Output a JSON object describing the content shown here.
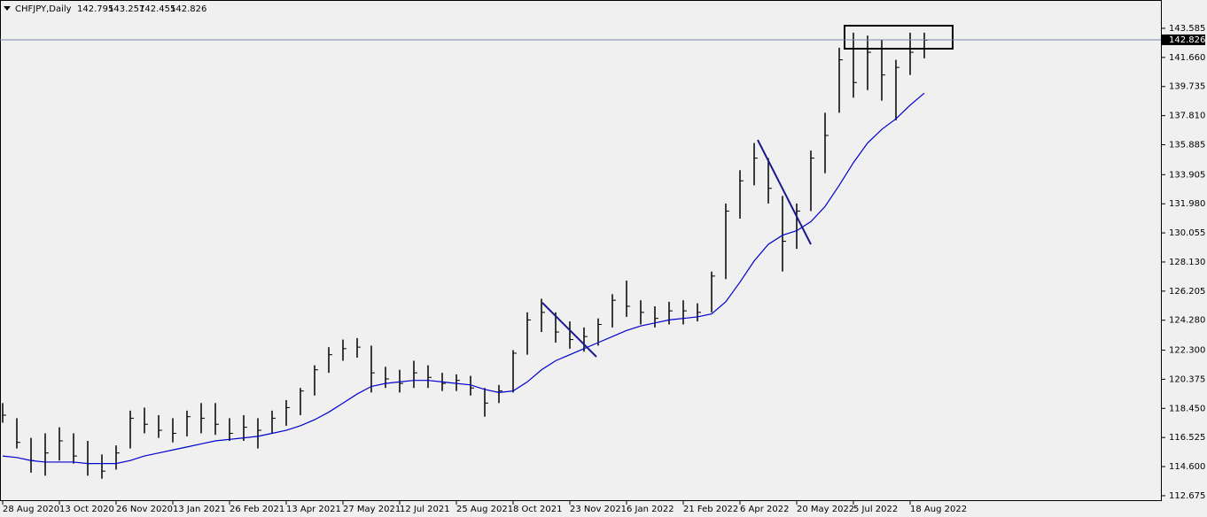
{
  "chart_data": {
    "type": "ohlc",
    "symbol": "CHFJPY,Daily",
    "quote": {
      "open": 142.795,
      "high": 143.257,
      "low": 142.455,
      "close": 142.826
    },
    "current_price": 142.826,
    "categories": [
      "28 Aug 2020",
      null,
      null,
      null,
      "13 Oct 2020",
      null,
      null,
      null,
      "26 Nov 2020",
      null,
      null,
      null,
      "13 Jan 2021",
      null,
      null,
      null,
      "26 Feb 2021",
      null,
      null,
      null,
      "13 Apr 2021",
      null,
      null,
      null,
      "27 May 2021",
      null,
      null,
      null,
      "12 Jul 2021",
      null,
      null,
      null,
      "25 Aug 2021",
      null,
      null,
      null,
      "8 Oct 2021",
      null,
      null,
      null,
      "23 Nov 2021",
      null,
      null,
      null,
      "6 Jan 2022",
      null,
      null,
      null,
      "21 Feb 2022",
      null,
      null,
      null,
      "6 Apr 2022",
      null,
      null,
      null,
      "20 May 2022",
      null,
      null,
      null,
      "5 Jul 2022",
      null,
      null,
      null,
      "18 Aug 2022",
      null
    ],
    "high": [
      118.8,
      117.8,
      116.5,
      116.8,
      117.2,
      116.8,
      116.3,
      115.4,
      116.0,
      118.3,
      118.5,
      118.0,
      117.8,
      118.3,
      118.8,
      118.8,
      117.8,
      118.0,
      117.8,
      118.3,
      119.0,
      119.8,
      121.3,
      122.5,
      123.0,
      123.1,
      122.6,
      121.2,
      121.0,
      121.6,
      121.3,
      120.8,
      120.7,
      120.6,
      119.8,
      120.0,
      122.3,
      124.8,
      125.7,
      124.8,
      124.2,
      123.8,
      124.4,
      126.0,
      126.9,
      125.6,
      125.2,
      125.5,
      125.6,
      125.4,
      127.5,
      132.0,
      134.2,
      136.0,
      135.0,
      132.5,
      132.0,
      135.5,
      138.0,
      142.3,
      143.3,
      143.1,
      142.8,
      141.5,
      143.3,
      143.3
    ],
    "low": [
      117.5,
      115.8,
      114.2,
      114.0,
      115.0,
      114.8,
      114.0,
      113.8,
      114.4,
      115.8,
      116.8,
      116.5,
      116.2,
      116.6,
      116.8,
      116.7,
      116.3,
      116.3,
      115.8,
      116.8,
      117.3,
      118.0,
      119.3,
      120.8,
      121.6,
      121.8,
      119.5,
      119.8,
      119.5,
      119.8,
      119.8,
      119.6,
      119.6,
      119.3,
      117.9,
      118.8,
      119.5,
      122.0,
      123.5,
      122.8,
      122.4,
      122.2,
      122.6,
      123.8,
      124.5,
      124.0,
      123.8,
      124.0,
      124.0,
      124.2,
      124.8,
      127.0,
      131.0,
      133.2,
      132.0,
      127.5,
      129.0,
      131.5,
      134.0,
      138.0,
      139.0,
      139.5,
      138.8,
      137.5,
      140.5,
      141.6
    ],
    "close": [
      118.0,
      116.2,
      115.0,
      115.5,
      116.3,
      115.3,
      114.8,
      114.3,
      115.5,
      117.8,
      117.4,
      117.0,
      116.8,
      117.9,
      117.8,
      117.4,
      116.8,
      117.2,
      117.0,
      117.8,
      118.5,
      119.6,
      121.0,
      122.0,
      122.4,
      122.5,
      120.8,
      120.4,
      120.1,
      120.8,
      120.5,
      120.1,
      120.3,
      119.8,
      118.8,
      119.6,
      122.1,
      124.3,
      124.8,
      123.5,
      123.0,
      123.2,
      124.0,
      125.6,
      125.2,
      124.8,
      124.4,
      124.9,
      124.9,
      124.8,
      127.2,
      131.5,
      133.5,
      135.0,
      133.0,
      129.5,
      131.5,
      135.0,
      136.5,
      141.5,
      140.0,
      142.0,
      140.5,
      141.0,
      142.0,
      142.8
    ],
    "ma": {
      "color": "#0000cc",
      "values": [
        115.3,
        115.2,
        115.0,
        114.9,
        114.9,
        114.9,
        114.8,
        114.8,
        114.8,
        115.0,
        115.3,
        115.5,
        115.7,
        115.9,
        116.1,
        116.3,
        116.4,
        116.5,
        116.6,
        116.8,
        117.0,
        117.3,
        117.7,
        118.2,
        118.8,
        119.4,
        119.9,
        120.1,
        120.2,
        120.3,
        120.3,
        120.2,
        120.1,
        120.0,
        119.7,
        119.5,
        119.6,
        120.2,
        121.0,
        121.6,
        122.0,
        122.4,
        122.8,
        123.2,
        123.6,
        123.9,
        124.1,
        124.3,
        124.4,
        124.5,
        124.7,
        125.5,
        126.8,
        128.2,
        129.3,
        129.9,
        130.2,
        130.8,
        131.8,
        133.2,
        134.7,
        136.0,
        136.9,
        137.6,
        138.5,
        139.3
      ]
    },
    "bar_color": "#000000",
    "ylim": [
      112.32,
      145.34
    ],
    "yticks": [
      112.675,
      {
        "value": 114.6,
        "label": "114.600"
      },
      116.525,
      {
        "value": 118.45,
        "label": "118.450"
      },
      120.375,
      {
        "value": 122.3,
        "label": "122.300"
      },
      {
        "value": 124.28,
        "label": "124.280"
      },
      126.205,
      {
        "value": 128.13,
        "label": "128.130"
      },
      130.055,
      {
        "value": 131.98,
        "label": "131.980"
      },
      133.905,
      135.885,
      {
        "value": 137.81,
        "label": "137.810"
      },
      139.735,
      {
        "value": 141.66,
        "label": "141.660"
      },
      143.585
    ]
  }
}
